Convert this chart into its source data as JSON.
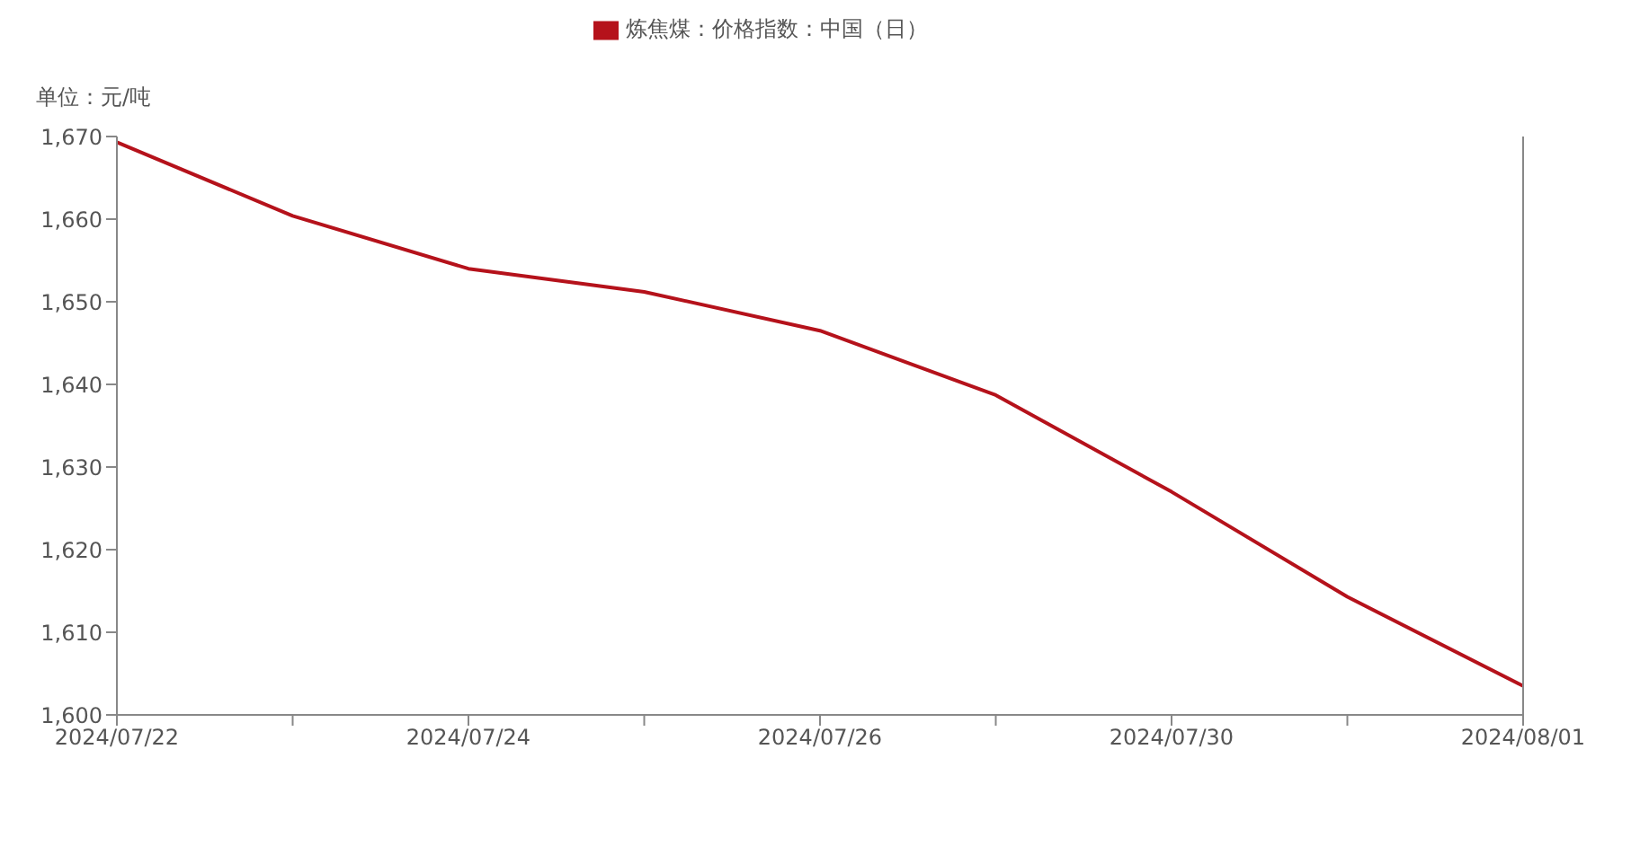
{
  "chart_data": {
    "type": "line",
    "ylabel": "单位：元/吨",
    "categories": [
      "2024/07/22",
      null,
      "2024/07/24",
      null,
      "2024/07/26",
      null,
      "2024/07/30",
      null,
      "2024/08/01"
    ],
    "series": [
      {
        "name": "炼焦煤：价格指数：中国（日）",
        "color": "#b5121b",
        "values": [
          1669.3,
          1660.4,
          1654.0,
          1651.2,
          1646.5,
          1638.7,
          1627.0,
          1614.3,
          1603.5
        ]
      }
    ],
    "ylim": [
      1600,
      1670
    ],
    "yticks": [
      {
        "value": 1600,
        "label": "1,600"
      },
      {
        "value": 1610,
        "label": "1,610"
      },
      {
        "value": 1620,
        "label": "1,620"
      },
      {
        "value": 1630,
        "label": "1,630"
      },
      {
        "value": 1640,
        "label": "1,640"
      },
      {
        "value": 1650,
        "label": "1,650"
      },
      {
        "value": 1660,
        "label": "1,660"
      },
      {
        "value": 1670,
        "label": "1,670"
      }
    ],
    "legend": "top",
    "grid": false,
    "marker": "none",
    "line_style": "solid"
  }
}
